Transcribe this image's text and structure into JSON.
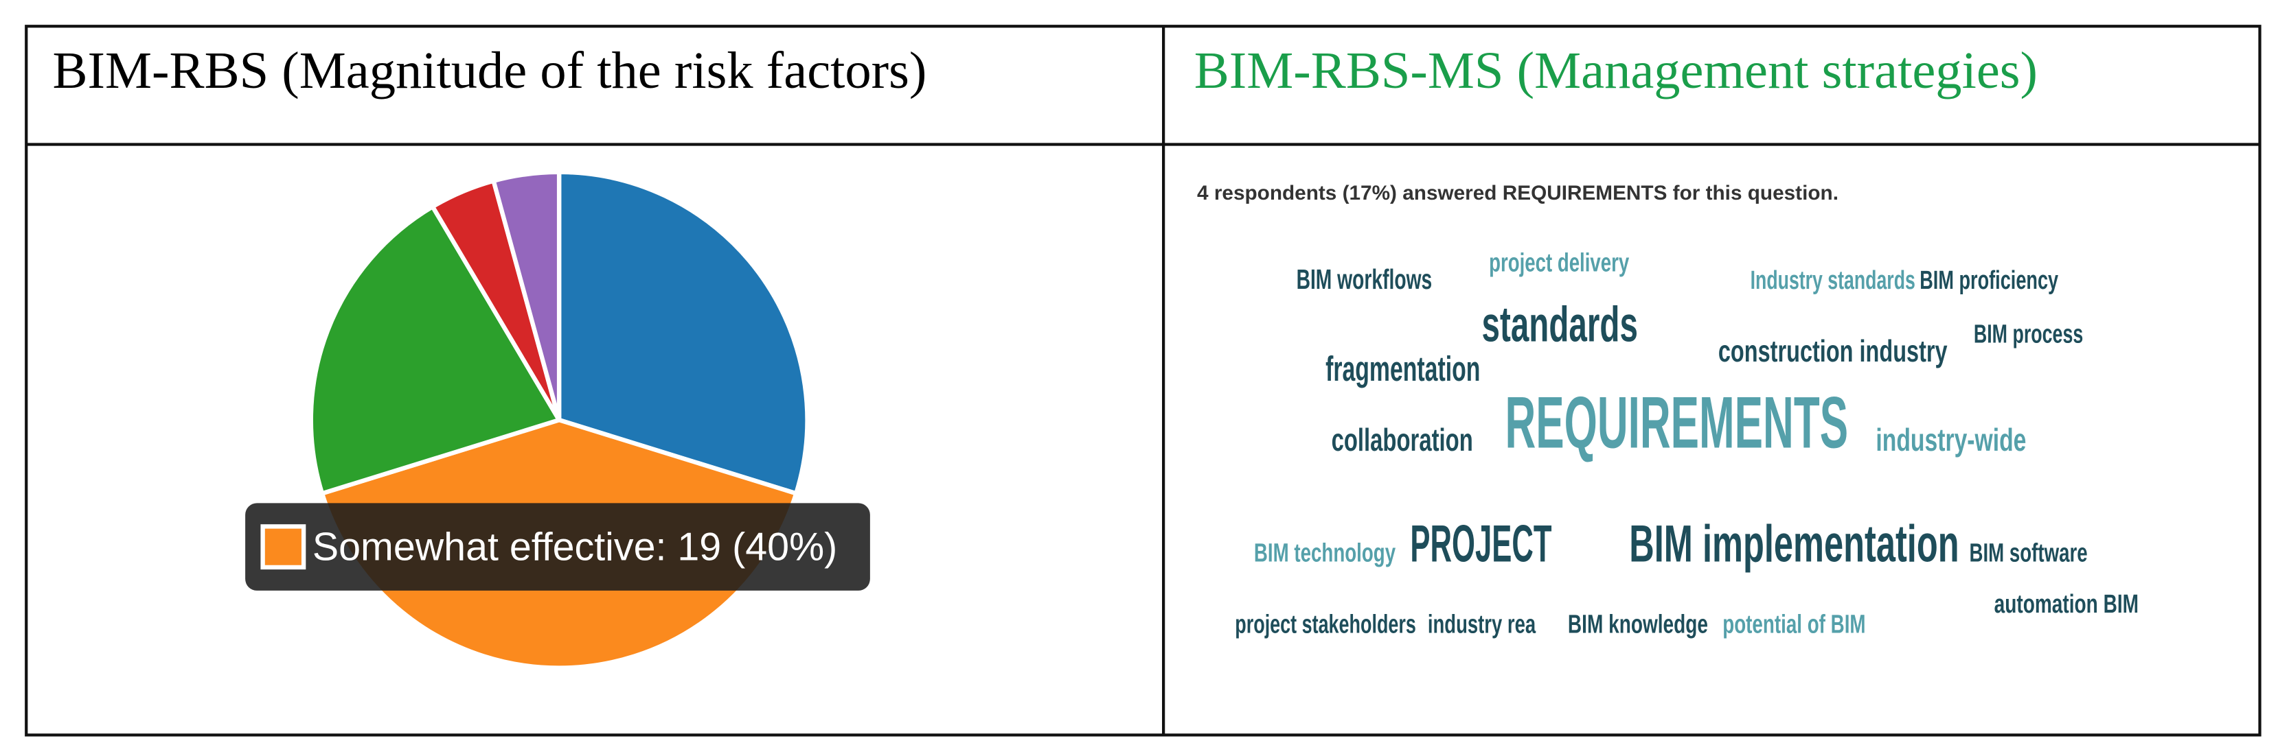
{
  "table": {
    "headers": [
      "BIM-RBS (Magnitude of the risk factors)",
      "BIM-RBS-MS (Management strategies)"
    ]
  },
  "chart_data": {
    "type": "pie",
    "values": [
      14,
      19,
      10,
      2,
      2
    ],
    "colors": [
      "#1f77b4",
      "#fb8a1e",
      "#2ca02c",
      "#d62728",
      "#9467bd"
    ],
    "value_labels": [
      null,
      "Somewhat effective: 19 (40%)",
      null,
      null,
      null
    ]
  },
  "word_cloud": {
    "summary": [
      "4",
      " respondents (",
      "17%",
      ") answered ",
      "REQUIREMENTS",
      " for this question."
    ],
    "words": [
      "BIM workflows",
      "project delivery",
      "Industry standards",
      "BIM proficiency",
      "standards",
      "construction industry",
      "BIM process",
      "fragmentation",
      "REQUIREMENTS",
      "collaboration",
      "industry-wide",
      "BIM technology",
      "PROJECT",
      "BIM implementation",
      "BIM software",
      "automation BIM",
      "project stakeholders",
      "industry rea",
      "BIM knowledge",
      "potential of BIM"
    ]
  }
}
